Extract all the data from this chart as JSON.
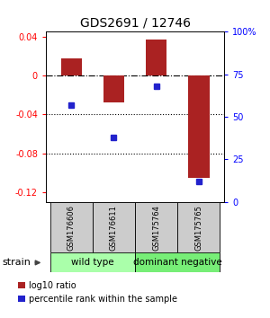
{
  "title": "GDS2691 / 12746",
  "samples": [
    "GSM176606",
    "GSM176611",
    "GSM175764",
    "GSM175765"
  ],
  "log10_ratio": [
    0.018,
    -0.028,
    0.037,
    -0.105
  ],
  "percentile_rank": [
    0.57,
    0.38,
    0.68,
    0.12
  ],
  "groups": [
    {
      "label": "wild type",
      "samples": [
        0,
        1
      ],
      "color": "#aaffaa"
    },
    {
      "label": "dominant negative",
      "samples": [
        2,
        3
      ],
      "color": "#77ee77"
    }
  ],
  "strain_label": "strain",
  "ylim_left": [
    -0.13,
    0.045
  ],
  "ylim_right": [
    0.0,
    1.0
  ],
  "yticks_left": [
    -0.12,
    -0.08,
    -0.04,
    0.0,
    0.04
  ],
  "yticks_right": [
    0.0,
    0.25,
    0.5,
    0.75,
    1.0
  ],
  "ytick_labels_left": [
    "-0.12",
    "-0.08",
    "-0.04",
    "0",
    "0.04"
  ],
  "ytick_labels_right": [
    "0",
    "25",
    "50",
    "75",
    "100%"
  ],
  "bar_color": "#aa2222",
  "dot_color": "#2222cc",
  "hline_dotted": [
    -0.04,
    -0.08
  ],
  "hline_dashdot": 0.0,
  "bar_width": 0.5,
  "background_color": "#ffffff",
  "xlim": [
    -0.6,
    3.6
  ]
}
